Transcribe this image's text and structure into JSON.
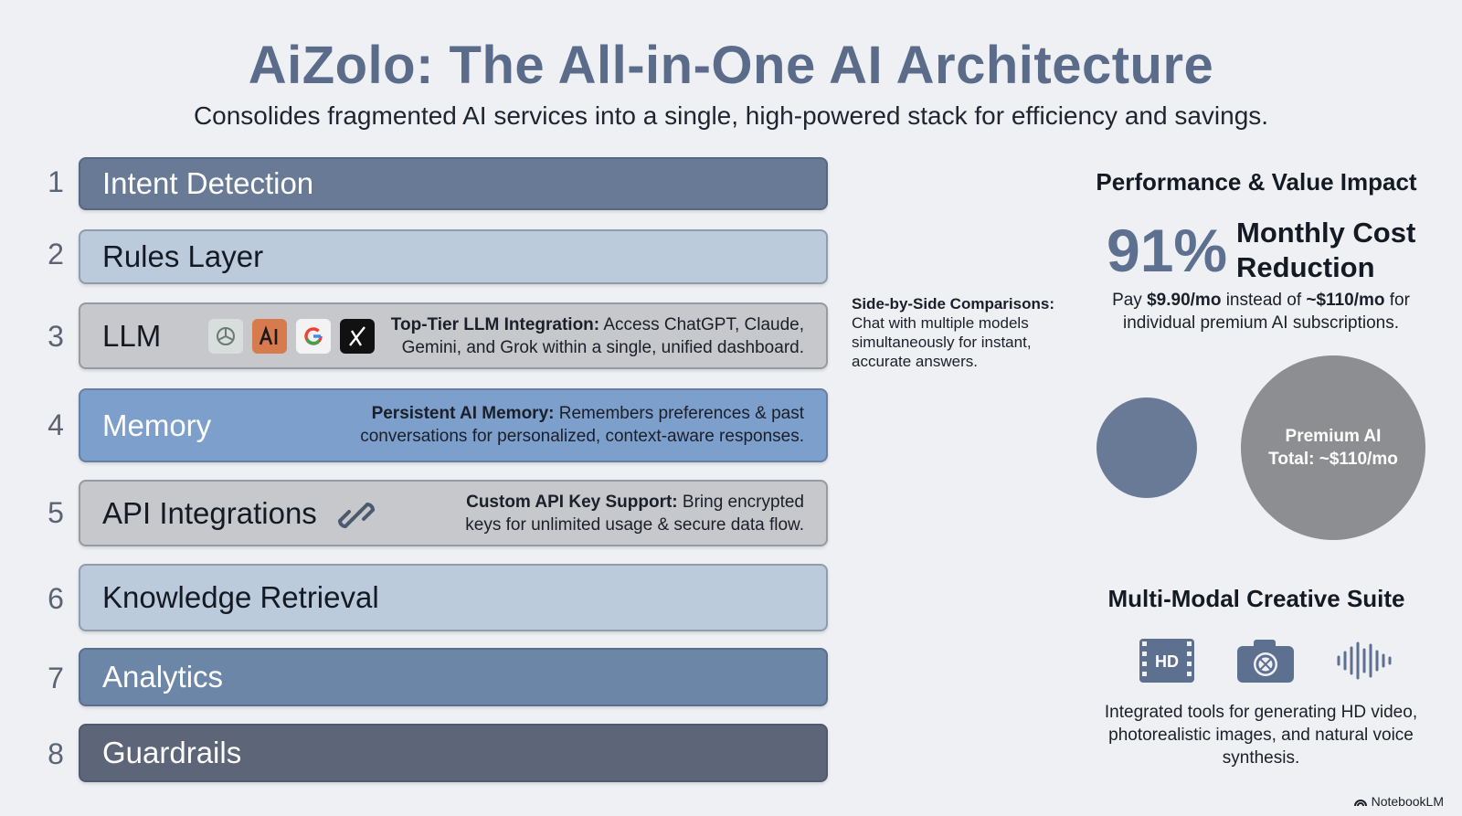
{
  "title": "AiZolo: The All-in-One AI Architecture",
  "subtitle": "Consolides fragmented AI services into a single, high-powered stack for efficiency and savings.",
  "layers": [
    {
      "num": "1",
      "label": "Intent Detection"
    },
    {
      "num": "2",
      "label": "Rules Layer"
    },
    {
      "num": "3",
      "label": "LLM",
      "desc_bold": "Top-Tier LLM Integration:",
      "desc_line1": " Access ChatGPT, Claude,",
      "desc_line2": "Gemini, and Grok within a single, unified dashboard."
    },
    {
      "num": "4",
      "label": "Memory",
      "desc_bold": "Persistent AI Memory:",
      "desc_line1": " Remembers preferences & past",
      "desc_line2": "conversations for personalized, context-aware responses."
    },
    {
      "num": "5",
      "label": "API Integrations",
      "desc_bold": "Custom API Key Support:",
      "desc_line1": " Bring encrypted",
      "desc_line2": "keys for unlimited usage & secure data flow."
    },
    {
      "num": "6",
      "label": "Knowledge Retrieval"
    },
    {
      "num": "7",
      "label": "Analytics"
    },
    {
      "num": "8",
      "label": "Guardrails"
    }
  ],
  "llm_logos": [
    "chatgpt-icon",
    "anthropic-icon",
    "google-icon",
    "grok-icon"
  ],
  "side_note": {
    "bold": "Side-by-Side Comparisons:",
    "text": "Chat with multiple models simultaneously for instant, accurate answers."
  },
  "performance": {
    "heading": "Performance & Value Impact",
    "percent": "91%",
    "percent_label": "Monthly Cost Reduction",
    "pay_prefix": "Pay ",
    "pay_price": "$9.90/mo",
    "pay_mid": " instead of ",
    "pay_compare": "~$110/mo",
    "pay_suffix": " for individual premium AI subscriptions.",
    "circle_label_line1": "Premium AI",
    "circle_label_line2": "Total: ~$110/mo"
  },
  "suite": {
    "heading": "Multi-Modal Creative Suite",
    "icons": [
      "hd-video-icon",
      "camera-icon",
      "audio-wave-icon"
    ],
    "hd_text": "HD",
    "text": "Integrated tools for generating HD video, photorealistic images, and natural voice synthesis."
  },
  "brand": "NotebookLM"
}
